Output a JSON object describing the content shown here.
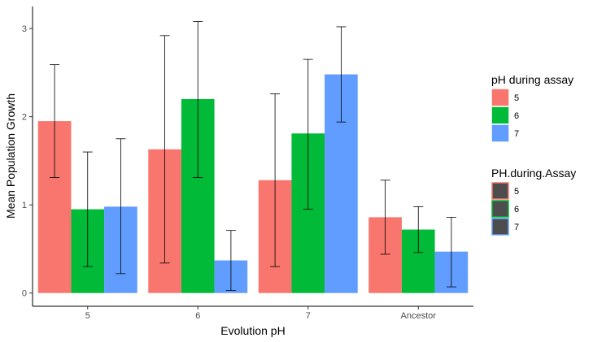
{
  "chart_data": {
    "type": "bar",
    "title": "",
    "xlabel": "Evolution pH",
    "ylabel": "Mean Population Growth",
    "categories": [
      "5",
      "6",
      "7",
      "Ancestor"
    ],
    "ylim": [
      -0.15,
      3.25
    ],
    "yticks": [
      "0",
      "1",
      "2",
      "3"
    ],
    "grid": false,
    "legend_position": "right",
    "series": [
      {
        "name": "5",
        "color": "#F8766D",
        "values": [
          1.95,
          1.63,
          1.28,
          0.86
        ],
        "err_low": [
          1.31,
          0.34,
          0.3,
          0.44
        ],
        "err_high": [
          2.59,
          2.92,
          2.26,
          1.28
        ]
      },
      {
        "name": "6",
        "color": "#00BA38",
        "values": [
          0.95,
          2.2,
          1.81,
          0.72
        ],
        "err_low": [
          0.3,
          1.31,
          0.95,
          0.46
        ],
        "err_high": [
          1.6,
          3.08,
          2.65,
          0.98
        ]
      },
      {
        "name": "7",
        "color": "#619CFF",
        "values": [
          0.98,
          0.37,
          2.48,
          0.47
        ],
        "err_low": [
          0.22,
          0.03,
          1.94,
          0.07
        ],
        "err_high": [
          1.75,
          0.71,
          3.02,
          0.86
        ]
      }
    ],
    "legends": [
      {
        "title": "pH during assay",
        "style": "fill",
        "entries": [
          "5",
          "6",
          "7"
        ]
      },
      {
        "title": "PH.during.Assay",
        "style": "outline",
        "entries": [
          "5",
          "6",
          "7"
        ]
      }
    ]
  }
}
